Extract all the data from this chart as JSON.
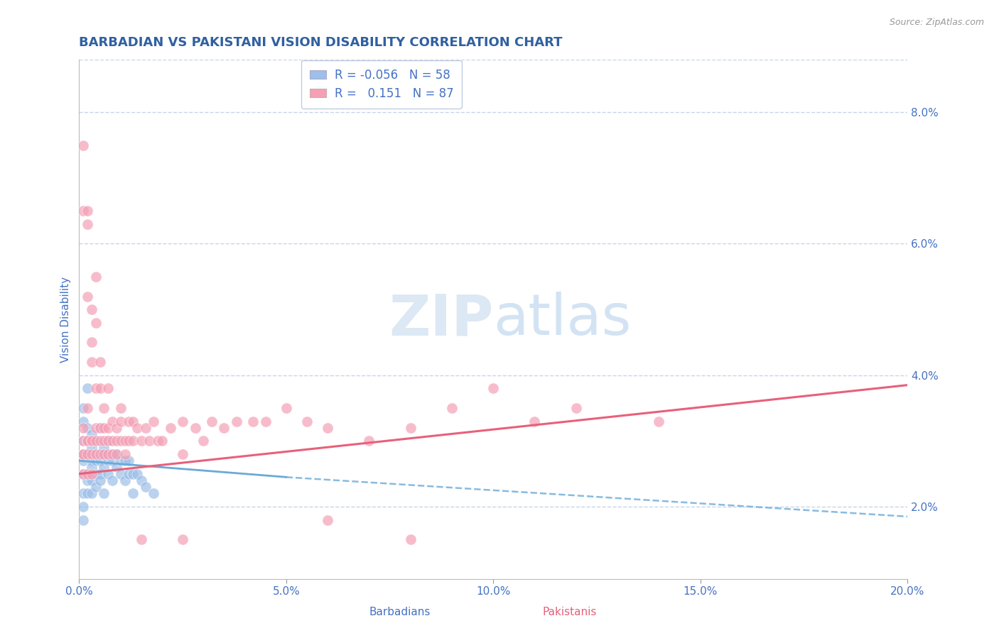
{
  "title": "BARBADIAN VS PAKISTANI VISION DISABILITY CORRELATION CHART",
  "source_text": "Source: ZipAtlas.com",
  "ylabel": "Vision Disability",
  "xlim": [
    0.0,
    0.2
  ],
  "ylim": [
    0.009,
    0.088
  ],
  "yticks": [
    0.02,
    0.04,
    0.06,
    0.08
  ],
  "ytick_labels": [
    "2.0%",
    "4.0%",
    "6.0%",
    "8.0%"
  ],
  "xticks": [
    0.0,
    0.05,
    0.1,
    0.15,
    0.2
  ],
  "xtick_labels": [
    "0.0%",
    "5.0%",
    "10.0%",
    "15.0%",
    "20.0%"
  ],
  "barbadian_R": -0.056,
  "barbadian_N": 58,
  "pakistani_R": 0.151,
  "pakistani_N": 87,
  "barbadian_color": "#9dbfe8",
  "pakistani_color": "#f4a0b5",
  "barbadian_line_color": "#6aaad8",
  "pakistani_line_color": "#e8607a",
  "title_color": "#3060a0",
  "axis_color": "#4472c4",
  "grid_color": "#c8d4e8",
  "watermark_color": "#dce8f4",
  "background_color": "#ffffff",
  "legend_edge_color": "#c0cce0",
  "bottom_label_color_barb": "#4472c4",
  "bottom_label_color_pak": "#e8607a",
  "barbadian_x": [
    0.001,
    0.001,
    0.001,
    0.001,
    0.001,
    0.001,
    0.001,
    0.001,
    0.001,
    0.002,
    0.002,
    0.002,
    0.002,
    0.002,
    0.002,
    0.002,
    0.002,
    0.003,
    0.003,
    0.003,
    0.003,
    0.003,
    0.003,
    0.003,
    0.004,
    0.004,
    0.004,
    0.004,
    0.004,
    0.005,
    0.005,
    0.005,
    0.005,
    0.005,
    0.006,
    0.006,
    0.006,
    0.006,
    0.007,
    0.007,
    0.007,
    0.008,
    0.008,
    0.008,
    0.009,
    0.009,
    0.01,
    0.01,
    0.011,
    0.011,
    0.012,
    0.012,
    0.013,
    0.013,
    0.014,
    0.015,
    0.016,
    0.018
  ],
  "barbadian_y": [
    0.027,
    0.03,
    0.022,
    0.02,
    0.033,
    0.028,
    0.025,
    0.018,
    0.035,
    0.028,
    0.025,
    0.032,
    0.022,
    0.03,
    0.038,
    0.028,
    0.024,
    0.029,
    0.027,
    0.024,
    0.031,
    0.026,
    0.022,
    0.03,
    0.028,
    0.025,
    0.03,
    0.027,
    0.023,
    0.028,
    0.025,
    0.032,
    0.027,
    0.024,
    0.029,
    0.026,
    0.022,
    0.028,
    0.027,
    0.025,
    0.03,
    0.028,
    0.024,
    0.027,
    0.026,
    0.028,
    0.025,
    0.027,
    0.024,
    0.027,
    0.025,
    0.027,
    0.025,
    0.022,
    0.025,
    0.024,
    0.023,
    0.022
  ],
  "pakistani_x": [
    0.001,
    0.001,
    0.001,
    0.001,
    0.001,
    0.001,
    0.001,
    0.002,
    0.002,
    0.002,
    0.002,
    0.002,
    0.002,
    0.002,
    0.002,
    0.003,
    0.003,
    0.003,
    0.003,
    0.003,
    0.003,
    0.003,
    0.004,
    0.004,
    0.004,
    0.004,
    0.004,
    0.004,
    0.005,
    0.005,
    0.005,
    0.005,
    0.005,
    0.006,
    0.006,
    0.006,
    0.006,
    0.007,
    0.007,
    0.007,
    0.007,
    0.008,
    0.008,
    0.008,
    0.009,
    0.009,
    0.009,
    0.01,
    0.01,
    0.01,
    0.011,
    0.011,
    0.012,
    0.012,
    0.013,
    0.013,
    0.014,
    0.015,
    0.016,
    0.017,
    0.018,
    0.019,
    0.02,
    0.022,
    0.025,
    0.025,
    0.028,
    0.03,
    0.032,
    0.035,
    0.038,
    0.042,
    0.045,
    0.05,
    0.055,
    0.06,
    0.07,
    0.08,
    0.09,
    0.1,
    0.11,
    0.12,
    0.14,
    0.08,
    0.015,
    0.025,
    0.06
  ],
  "pakistani_y": [
    0.075,
    0.065,
    0.028,
    0.03,
    0.032,
    0.028,
    0.025,
    0.063,
    0.052,
    0.035,
    0.03,
    0.028,
    0.025,
    0.03,
    0.065,
    0.05,
    0.042,
    0.03,
    0.028,
    0.025,
    0.03,
    0.045,
    0.055,
    0.038,
    0.032,
    0.03,
    0.028,
    0.048,
    0.038,
    0.032,
    0.03,
    0.028,
    0.042,
    0.035,
    0.032,
    0.028,
    0.03,
    0.038,
    0.032,
    0.03,
    0.028,
    0.033,
    0.03,
    0.028,
    0.032,
    0.03,
    0.028,
    0.033,
    0.03,
    0.035,
    0.03,
    0.028,
    0.033,
    0.03,
    0.033,
    0.03,
    0.032,
    0.03,
    0.032,
    0.03,
    0.033,
    0.03,
    0.03,
    0.032,
    0.033,
    0.028,
    0.032,
    0.03,
    0.033,
    0.032,
    0.033,
    0.033,
    0.033,
    0.035,
    0.033,
    0.032,
    0.03,
    0.032,
    0.035,
    0.038,
    0.033,
    0.035,
    0.033,
    0.015,
    0.015,
    0.015,
    0.018
  ],
  "barb_trend_x0": 0.0,
  "barb_trend_x1": 0.05,
  "barb_trend_x_dash0": 0.05,
  "barb_trend_x_dash1": 0.2,
  "barb_trend_y0": 0.027,
  "barb_trend_y1": 0.0245,
  "barb_trend_y_dash0": 0.0245,
  "barb_trend_y_dash1": 0.0185,
  "pak_trend_x0": 0.0,
  "pak_trend_x1": 0.2,
  "pak_trend_y0": 0.025,
  "pak_trend_y1": 0.0385
}
